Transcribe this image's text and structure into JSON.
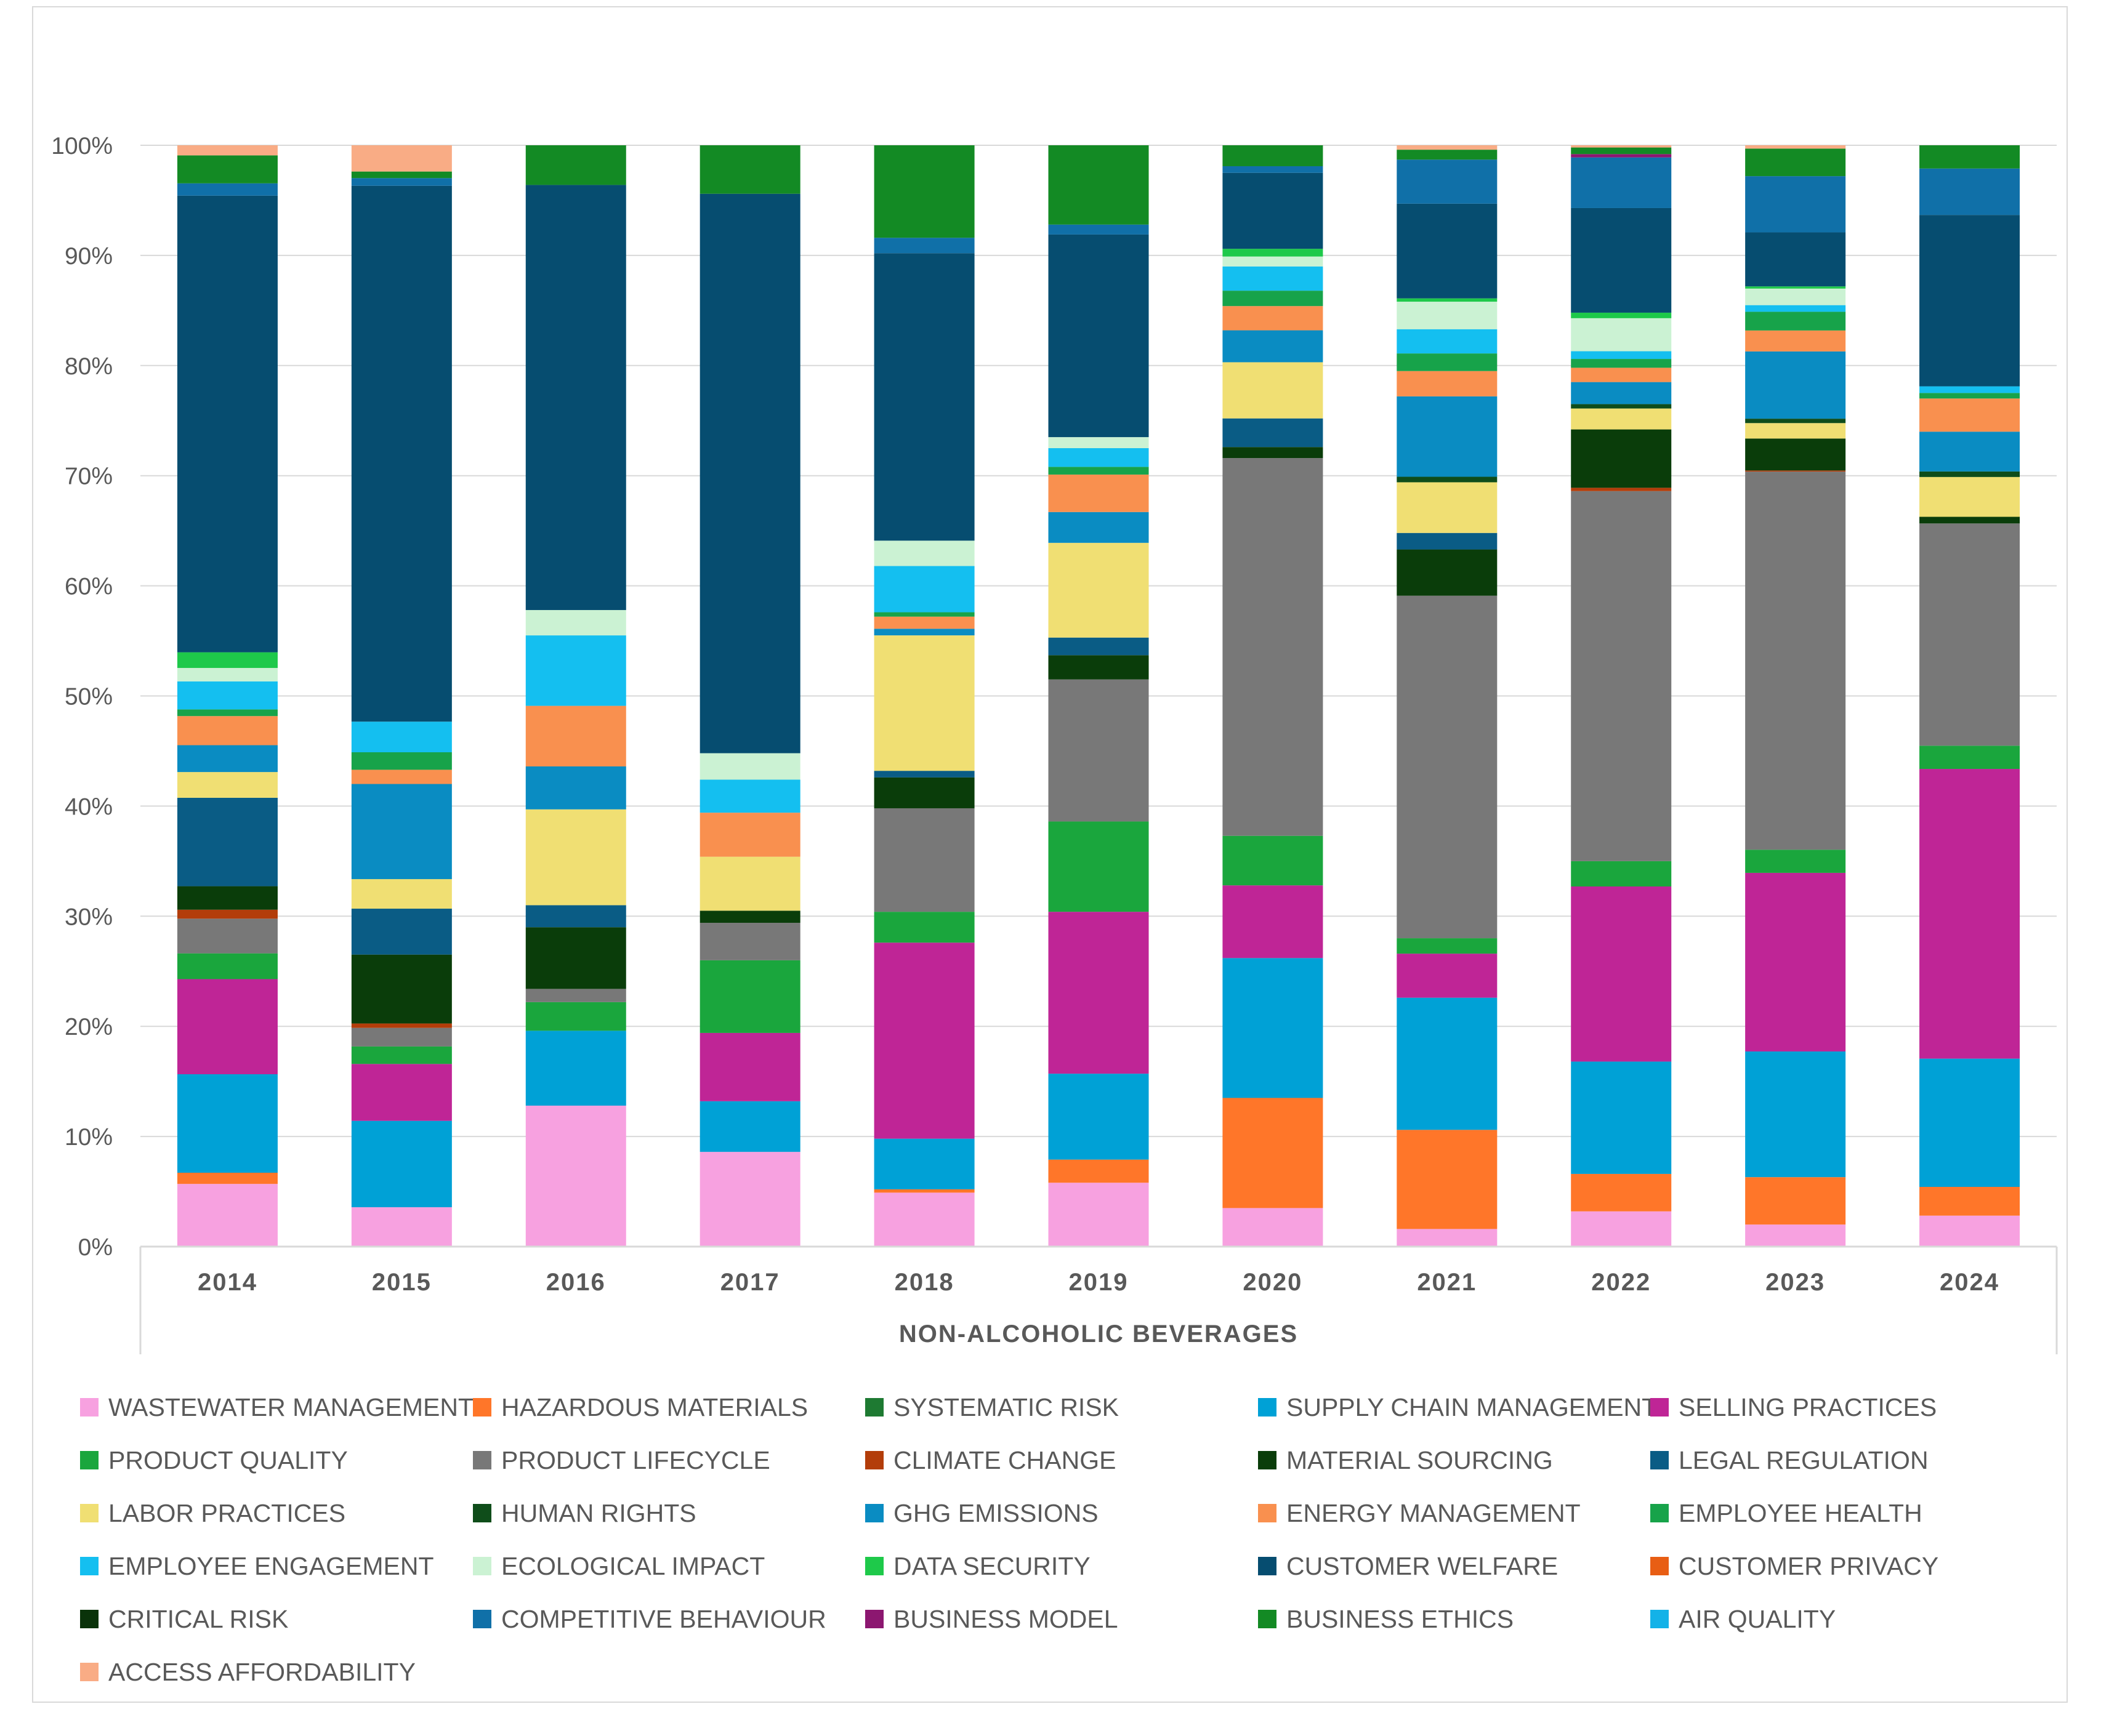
{
  "chart_data": {
    "type": "bar",
    "stacked": "percent",
    "xlabel": "NON-ALCOHOLIC BEVERAGES",
    "ylabel": "",
    "ylim": [
      0,
      100
    ],
    "y_ticks": [
      "0%",
      "10%",
      "20%",
      "30%",
      "40%",
      "50%",
      "60%",
      "70%",
      "80%",
      "90%",
      "100%"
    ],
    "grid": true,
    "legend_position": "bottom",
    "categories": [
      "2014",
      "2015",
      "2016",
      "2017",
      "2018",
      "2019",
      "2020",
      "2021",
      "2022",
      "2023",
      "2024"
    ],
    "series": [
      {
        "name": "WASTEWATER MANAGEMENT",
        "color": "#f7a1e0",
        "values": [
          5.6,
          3.6,
          12.8,
          8.6,
          4.9,
          5.8,
          3.5,
          1.6,
          3.2,
          2.0,
          2.8
        ]
      },
      {
        "name": "HAZARDOUS MATERIALS",
        "color": "#ff7629",
        "values": [
          1.0,
          0.0,
          0.0,
          0.0,
          0.3,
          2.1,
          10.0,
          9.0,
          3.4,
          4.3,
          2.6
        ]
      },
      {
        "name": "SYSTEMATIC RISK",
        "color": "#1e7a32",
        "values": [
          0.0,
          0.0,
          0.0,
          0.0,
          0.0,
          0.0,
          0.0,
          0.0,
          0.0,
          0.0,
          0.0
        ]
      },
      {
        "name": "SUPPLY CHAIN MANAGEMENT",
        "color": "#00a1d6",
        "values": [
          8.8,
          7.9,
          6.8,
          4.6,
          4.6,
          7.8,
          12.7,
          12.0,
          10.2,
          11.4,
          11.6
        ]
      },
      {
        "name": "SELLING PRACTICES",
        "color": "#bf2596",
        "values": [
          8.5,
          5.2,
          0.0,
          6.2,
          17.8,
          14.7,
          6.6,
          4.0,
          15.9,
          16.2,
          26.2
        ]
      },
      {
        "name": "PRODUCT QUALITY",
        "color": "#1aa63d",
        "values": [
          2.3,
          1.6,
          2.6,
          6.6,
          2.8,
          8.2,
          4.5,
          1.4,
          2.3,
          2.1,
          2.1
        ]
      },
      {
        "name": "PRODUCT LIFECYCLE",
        "color": "#787878",
        "values": [
          3.1,
          1.7,
          1.2,
          3.4,
          9.4,
          12.9,
          34.3,
          31.1,
          33.6,
          34.3,
          20.1
        ]
      },
      {
        "name": "CLIMATE CHANGE",
        "color": "#b33d0a",
        "values": [
          0.8,
          0.4,
          0.0,
          0.0,
          0.0,
          0.0,
          0.0,
          0.0,
          0.3,
          0.1,
          0.0
        ]
      },
      {
        "name": "MATERIAL SOURCING",
        "color": "#0a3d0a",
        "values": [
          2.1,
          6.3,
          5.6,
          1.1,
          2.8,
          2.2,
          1.0,
          4.2,
          5.3,
          2.9,
          0.6
        ]
      },
      {
        "name": "LEGAL REGULATION",
        "color": "#0a5c85",
        "values": [
          7.9,
          4.2,
          2.0,
          0.0,
          0.6,
          1.6,
          2.6,
          1.5,
          0.0,
          0.0,
          0.0
        ]
      },
      {
        "name": "LABOR PRACTICES",
        "color": "#f0df73",
        "values": [
          2.3,
          2.7,
          8.7,
          4.9,
          12.3,
          8.6,
          5.1,
          4.6,
          1.9,
          1.4,
          3.6
        ]
      },
      {
        "name": "HUMAN RIGHTS",
        "color": "#0f4d1a",
        "values": [
          0.0,
          0.0,
          0.0,
          0.0,
          0.0,
          0.0,
          0.0,
          0.5,
          0.4,
          0.4,
          0.5
        ]
      },
      {
        "name": "GHG EMISSIONS",
        "color": "#0a8cc2",
        "values": [
          2.4,
          8.7,
          3.9,
          0.0,
          0.6,
          2.8,
          2.9,
          7.3,
          2.0,
          6.1,
          3.6
        ]
      },
      {
        "name": "ENERGY MANAGEMENT",
        "color": "#f9904f",
        "values": [
          2.6,
          1.3,
          5.5,
          4.0,
          1.1,
          3.4,
          2.2,
          2.3,
          1.3,
          1.9,
          3.0
        ]
      },
      {
        "name": "EMPLOYEE HEALTH",
        "color": "#17a34a",
        "values": [
          0.6,
          1.6,
          0.0,
          0.0,
          0.4,
          0.7,
          1.4,
          1.6,
          0.8,
          1.7,
          0.5
        ]
      },
      {
        "name": "EMPLOYEE ENGAGEMENT",
        "color": "#14bff0",
        "values": [
          2.5,
          2.8,
          6.4,
          3.0,
          4.2,
          1.7,
          2.2,
          2.2,
          0.7,
          0.6,
          0.6
        ]
      },
      {
        "name": "ECOLOGICAL IMPACT",
        "color": "#cbf2d3",
        "values": [
          1.2,
          0.0,
          2.3,
          2.4,
          2.3,
          1.0,
          0.9,
          2.5,
          3.0,
          1.5,
          0.0
        ]
      },
      {
        "name": "DATA SECURITY",
        "color": "#1ec94a",
        "values": [
          1.4,
          0.0,
          0.0,
          0.0,
          0.0,
          0.0,
          0.7,
          0.3,
          0.5,
          0.2,
          0.0
        ]
      },
      {
        "name": "CUSTOMER WELFARE",
        "color": "#064d70",
        "values": [
          40.8,
          49.0,
          38.6,
          50.8,
          26.1,
          18.4,
          6.9,
          8.6,
          9.5,
          4.9,
          15.5
        ]
      },
      {
        "name": "CUSTOMER PRIVACY",
        "color": "#e85e14",
        "values": [
          0.0,
          0.0,
          0.0,
          0.0,
          0.0,
          0.0,
          0.0,
          0.0,
          0.0,
          0.0,
          0.0
        ]
      },
      {
        "name": "CRITICAL RISK",
        "color": "#0a330a",
        "values": [
          0.0,
          0.0,
          0.0,
          0.0,
          0.0,
          0.0,
          0.0,
          0.0,
          0.0,
          0.0,
          0.0
        ]
      },
      {
        "name": "COMPETITIVE BEHAVIOUR",
        "color": "#1070a8",
        "values": [
          1.1,
          0.7,
          0.0,
          0.0,
          1.4,
          0.9,
          0.6,
          4.0,
          4.6,
          5.1,
          4.2
        ]
      },
      {
        "name": "BUSINESS MODEL",
        "color": "#8c1770",
        "values": [
          0.0,
          0.0,
          0.0,
          0.0,
          0.0,
          0.0,
          0.0,
          0.0,
          0.3,
          0.0,
          0.0
        ]
      },
      {
        "name": "BUSINESS ETHICS",
        "color": "#138a24",
        "values": [
          2.5,
          0.6,
          3.6,
          4.4,
          8.4,
          7.2,
          1.9,
          0.9,
          0.6,
          2.5,
          2.1
        ]
      },
      {
        "name": "AIR QUALITY",
        "color": "#13b2e8",
        "values": [
          0.0,
          0.0,
          0.0,
          0.0,
          0.0,
          0.0,
          0.0,
          0.0,
          0.0,
          0.0,
          0.0
        ]
      },
      {
        "name": "ACCESS AFFORDABILITY",
        "color": "#f9ac85",
        "values": [
          0.9,
          2.4,
          0.0,
          0.0,
          0.0,
          0.0,
          0.0,
          0.4,
          0.2,
          0.3,
          0.0
        ]
      }
    ]
  }
}
